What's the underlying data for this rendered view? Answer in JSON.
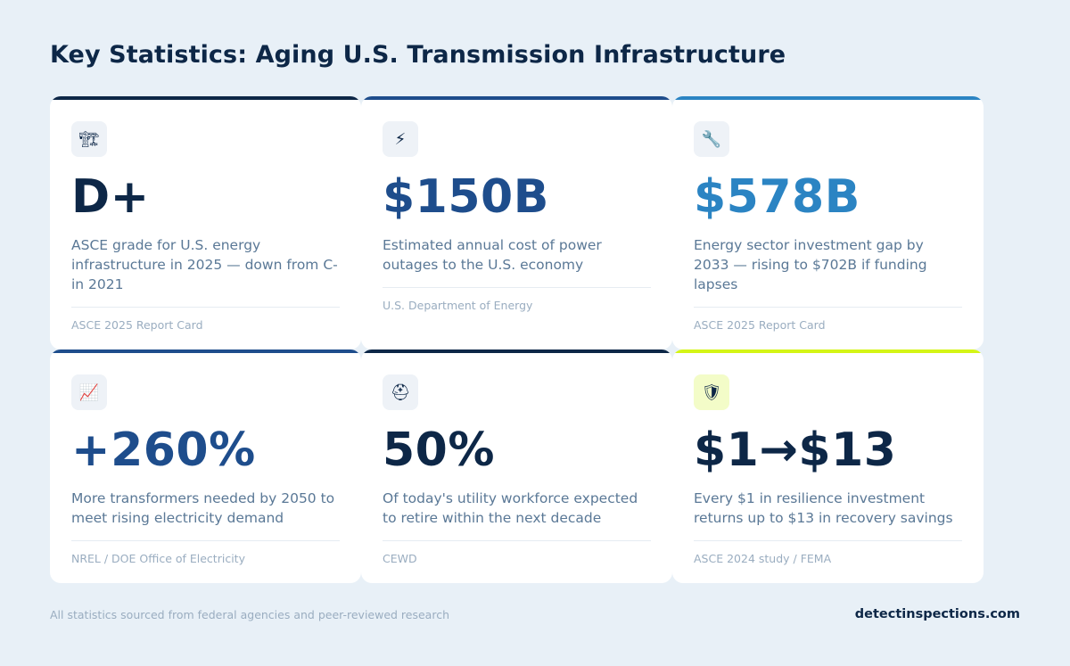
{
  "title": "Key Statistics: Aging U.S. Transmission Infrastructure",
  "cards": [
    {
      "icon": "construction-icon",
      "glyph": "🏗",
      "stat": "D+",
      "stat_color": "#0d2747",
      "bar_color": "#0d2747",
      "description": "ASCE grade for U.S. energy infrastructure in 2025 — down from C- in 2021",
      "source": "ASCE 2025 Report Card"
    },
    {
      "icon": "lightning-icon",
      "glyph": "⚡",
      "stat": "$150B",
      "stat_color": "#1e4d8c",
      "bar_color": "#1e4d8c",
      "description": "Estimated annual cost of power outages to the U.S. economy",
      "source": "U.S. Department of Energy"
    },
    {
      "icon": "wrench-icon",
      "glyph": "🔧",
      "stat": "$578B",
      "stat_color": "#2b84c3",
      "bar_color": "#2b84c3",
      "description": "Energy sector investment gap by 2033 — rising to $702B if funding lapses",
      "source": "ASCE 2025 Report Card"
    },
    {
      "icon": "chart-increasing-icon",
      "glyph": "📈",
      "stat": "+260%",
      "stat_color": "#1e4d8c",
      "bar_color": "#1e4d8c",
      "description": "More transformers needed by 2050 to meet rising electricity demand",
      "source": "NREL / DOE Office of Electricity"
    },
    {
      "icon": "hard-hat-icon",
      "glyph": "⛑",
      "stat": "50%",
      "stat_color": "#0d2747",
      "bar_color": "#0d2747",
      "description": "Of today's utility workforce expected to retire within the next decade",
      "source": "CEWD"
    },
    {
      "icon": "shield-icon",
      "glyph": "🛡",
      "stat": "$1→$13",
      "stat_color": "#0d2747",
      "bar_color": "#d4f516",
      "icon_bg": "lime",
      "description": "Every $1 in resilience investment returns up to $13 in recovery savings",
      "source": "ASCE 2024 study / FEMA"
    }
  ],
  "footer": {
    "note": "All statistics sourced from federal agencies and peer-reviewed research",
    "brand": "detectinspections.com"
  }
}
